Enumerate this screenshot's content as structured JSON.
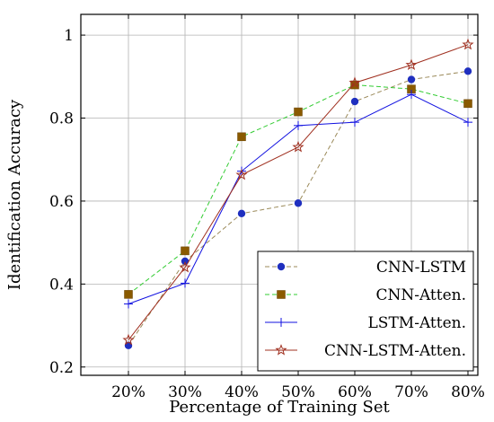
{
  "chart_data": {
    "type": "line",
    "title": "",
    "xlabel": "Percentage of Training Set",
    "ylabel": "Identification Accuracy",
    "categories": [
      "20%",
      "30%",
      "40%",
      "50%",
      "60%",
      "70%",
      "80%"
    ],
    "y_ticks": [
      0.2,
      0.4,
      0.6,
      0.8,
      1
    ],
    "ylim": [
      0.18,
      1.05
    ],
    "grid": true,
    "legend_position": "bottom-right",
    "series": [
      {
        "name": "CNN-LSTM",
        "color": "#9b8a5a",
        "dash": "dashed",
        "marker": "circle",
        "marker_color": "#1f2fbf",
        "values": [
          0.252,
          0.455,
          0.57,
          0.595,
          0.84,
          0.893,
          0.913
        ]
      },
      {
        "name": "CNN-Atten.",
        "color": "#33cc33",
        "dash": "dashed",
        "marker": "square",
        "marker_color": "#8a5a00",
        "values": [
          0.375,
          0.48,
          0.755,
          0.815,
          0.88,
          0.87,
          0.835
        ]
      },
      {
        "name": "LSTM-Atten.",
        "color": "#1010e0",
        "dash": "solid",
        "marker": "plus",
        "marker_color": "#1010e0",
        "values": [
          0.352,
          0.402,
          0.672,
          0.782,
          0.79,
          0.857,
          0.79
        ]
      },
      {
        "name": "CNN-LSTM-Atten.",
        "color": "#a03020",
        "dash": "solid",
        "marker": "star",
        "marker_color": "#a03020",
        "values": [
          0.265,
          0.44,
          0.663,
          0.73,
          0.885,
          0.928,
          0.977
        ]
      }
    ]
  }
}
